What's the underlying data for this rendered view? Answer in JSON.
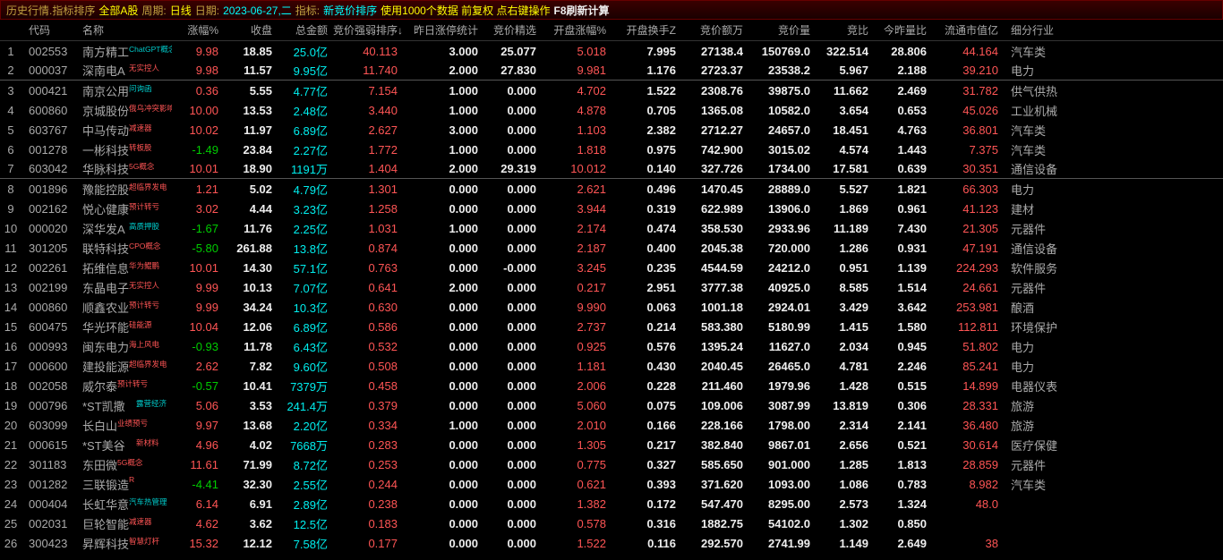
{
  "title": {
    "p1": "历史行情.指标排序",
    "p2": "全部A股",
    "p3": "周期:",
    "p4": "日线",
    "p5": "日期:",
    "p6": "2023-06-27,二",
    "p7": "指标:",
    "p8": "新竞价排序",
    "p9": "使用1000个数据 前复权 点右键操作",
    "p10": "F8刷新计算"
  },
  "columns": [
    "代码",
    "名称",
    "涨幅%",
    "收盘",
    "总金额",
    "竞价强弱排序↓",
    "昨日涨停统计",
    "竞价精选",
    "开盘涨幅%",
    "开盘换手Z",
    "竞价额万",
    "竞价量",
    "竞比",
    "今昨量比",
    "流通市值亿",
    "细分行业"
  ],
  "rows": [
    {
      "i": 1,
      "code": "002553",
      "name": "南方精工",
      "tag": "ChatGPT概念",
      "tagc": "#0cc",
      "pct": "9.98",
      "close": "18.85",
      "amt": "25.0",
      "u": "亿",
      "rank": "40.113",
      "yzt": "3.000",
      "jj": "25.077",
      "open": "5.018",
      "turn": "7.995",
      "ba": "27138.4",
      "bv": "150769.0",
      "br": "322.514",
      "dr": "28.806",
      "mcap": "44.164",
      "ind": "汽车类",
      "sep": false
    },
    {
      "i": 2,
      "code": "000037",
      "name": "深南电A",
      "tag": "无实控人",
      "tagc": "#f55",
      "pct": "9.98",
      "close": "11.57",
      "amt": "9.95",
      "u": "亿",
      "rank": "11.740",
      "yzt": "2.000",
      "jj": "27.830",
      "open": "9.981",
      "turn": "1.176",
      "ba": "2723.37",
      "bv": "23538.2",
      "br": "5.967",
      "dr": "2.188",
      "mcap": "39.210",
      "ind": "电力",
      "sep": true
    },
    {
      "i": 3,
      "code": "000421",
      "name": "南京公用",
      "tag": "问询函",
      "tagc": "#0cc",
      "pct": "0.36",
      "close": "5.55",
      "amt": "4.77",
      "u": "亿",
      "rank": "7.154",
      "yzt": "1.000",
      "jj": "0.000",
      "open": "4.702",
      "turn": "1.522",
      "ba": "2308.76",
      "bv": "39875.0",
      "br": "11.662",
      "dr": "2.469",
      "mcap": "31.782",
      "ind": "供气供热",
      "sep": false
    },
    {
      "i": 4,
      "code": "600860",
      "name": "京城股份",
      "tag": "俄乌冲突影响",
      "tagc": "#f55",
      "pct": "10.00",
      "close": "13.53",
      "amt": "2.48",
      "u": "亿",
      "rank": "3.440",
      "yzt": "1.000",
      "jj": "0.000",
      "open": "4.878",
      "turn": "0.705",
      "ba": "1365.08",
      "bv": "10582.0",
      "br": "3.654",
      "dr": "0.653",
      "mcap": "45.026",
      "ind": "工业机械",
      "sep": false
    },
    {
      "i": 5,
      "code": "603767",
      "name": "中马传动",
      "tag": "减速器",
      "tagc": "#f55",
      "pct": "10.02",
      "close": "11.97",
      "amt": "6.89",
      "u": "亿",
      "rank": "2.627",
      "yzt": "3.000",
      "jj": "0.000",
      "open": "1.103",
      "turn": "2.382",
      "ba": "2712.27",
      "bv": "24657.0",
      "br": "18.451",
      "dr": "4.763",
      "mcap": "36.801",
      "ind": "汽车类",
      "sep": false
    },
    {
      "i": 6,
      "code": "001278",
      "name": "一彬科技",
      "tag": "转板股",
      "tagc": "#f55",
      "pct": "-1.49",
      "close": "23.84",
      "amt": "2.27",
      "u": "亿",
      "rank": "1.772",
      "yzt": "1.000",
      "jj": "0.000",
      "open": "1.818",
      "turn": "0.975",
      "ba": "742.900",
      "bv": "3015.02",
      "br": "4.574",
      "dr": "1.443",
      "mcap": "7.375",
      "ind": "汽车类",
      "sep": false
    },
    {
      "i": 7,
      "code": "603042",
      "name": "华脉科技",
      "tag": "5G概念",
      "tagc": "#f55",
      "pct": "10.01",
      "close": "18.90",
      "amt": "1191",
      "u": "万",
      "rank": "1.404",
      "yzt": "2.000",
      "jj": "29.319",
      "open": "10.012",
      "turn": "0.140",
      "ba": "327.726",
      "bv": "1734.00",
      "br": "17.581",
      "dr": "0.639",
      "mcap": "30.351",
      "ind": "通信设备",
      "sep": true
    },
    {
      "i": 8,
      "code": "001896",
      "name": "豫能控股",
      "tag": "超临界发电",
      "tagc": "#f55",
      "pct": "1.21",
      "close": "5.02",
      "amt": "4.79",
      "u": "亿",
      "rank": "1.301",
      "yzt": "0.000",
      "jj": "0.000",
      "open": "2.621",
      "turn": "0.496",
      "ba": "1470.45",
      "bv": "28889.0",
      "br": "5.527",
      "dr": "1.821",
      "mcap": "66.303",
      "ind": "电力",
      "sep": false
    },
    {
      "i": 9,
      "code": "002162",
      "name": "悦心健康",
      "tag": "预计转亏",
      "tagc": "#f55",
      "pct": "3.02",
      "close": "4.44",
      "amt": "3.23",
      "u": "亿",
      "rank": "1.258",
      "yzt": "0.000",
      "jj": "0.000",
      "open": "3.944",
      "turn": "0.319",
      "ba": "622.989",
      "bv": "13906.0",
      "br": "1.869",
      "dr": "0.961",
      "mcap": "41.123",
      "ind": "建材",
      "sep": false
    },
    {
      "i": 10,
      "code": "000020",
      "name": "深华发A",
      "tag": "高质押股",
      "tagc": "#0cc",
      "pct": "-1.67",
      "close": "11.76",
      "amt": "2.25",
      "u": "亿",
      "rank": "1.031",
      "yzt": "1.000",
      "jj": "0.000",
      "open": "2.174",
      "turn": "0.474",
      "ba": "358.530",
      "bv": "2933.96",
      "br": "11.189",
      "dr": "7.430",
      "mcap": "21.305",
      "ind": "元器件",
      "sep": false
    },
    {
      "i": 11,
      "code": "301205",
      "name": "联特科技",
      "tag": "CPO概念",
      "tagc": "#f55",
      "pct": "-5.80",
      "close": "261.88",
      "amt": "13.8",
      "u": "亿",
      "rank": "0.874",
      "yzt": "0.000",
      "jj": "0.000",
      "open": "2.187",
      "turn": "0.400",
      "ba": "2045.38",
      "bv": "720.000",
      "br": "1.286",
      "dr": "0.931",
      "mcap": "47.191",
      "ind": "通信设备",
      "sep": false
    },
    {
      "i": 12,
      "code": "002261",
      "name": "拓维信息",
      "tag": "华为鲲鹏",
      "tagc": "#f55",
      "pct": "10.01",
      "close": "14.30",
      "amt": "57.1",
      "u": "亿",
      "rank": "0.763",
      "yzt": "0.000",
      "jj": "-0.000",
      "open": "3.245",
      "turn": "0.235",
      "ba": "4544.59",
      "bv": "24212.0",
      "br": "0.951",
      "dr": "1.139",
      "mcap": "224.293",
      "ind": "软件服务",
      "sep": false
    },
    {
      "i": 13,
      "code": "002199",
      "name": "东晶电子",
      "tag": "无实控人",
      "tagc": "#f55",
      "pct": "9.99",
      "close": "10.13",
      "amt": "7.07",
      "u": "亿",
      "rank": "0.641",
      "yzt": "2.000",
      "jj": "0.000",
      "open": "0.217",
      "turn": "2.951",
      "ba": "3777.38",
      "bv": "40925.0",
      "br": "8.585",
      "dr": "1.514",
      "mcap": "24.661",
      "ind": "元器件",
      "sep": false
    },
    {
      "i": 14,
      "code": "000860",
      "name": "顺鑫农业",
      "tag": "预计转亏",
      "tagc": "#f55",
      "pct": "9.99",
      "close": "34.24",
      "amt": "10.3",
      "u": "亿",
      "rank": "0.630",
      "yzt": "0.000",
      "jj": "0.000",
      "open": "9.990",
      "turn": "0.063",
      "ba": "1001.18",
      "bv": "2924.01",
      "br": "3.429",
      "dr": "3.642",
      "mcap": "253.981",
      "ind": "酿酒",
      "sep": false
    },
    {
      "i": 15,
      "code": "600475",
      "name": "华光环能",
      "tag": "硅能源",
      "tagc": "#f55",
      "pct": "10.04",
      "close": "12.06",
      "amt": "6.89",
      "u": "亿",
      "rank": "0.586",
      "yzt": "0.000",
      "jj": "0.000",
      "open": "2.737",
      "turn": "0.214",
      "ba": "583.380",
      "bv": "5180.99",
      "br": "1.415",
      "dr": "1.580",
      "mcap": "112.811",
      "ind": "环境保护",
      "sep": false
    },
    {
      "i": 16,
      "code": "000993",
      "name": "闽东电力",
      "tag": "海上风电",
      "tagc": "#f55",
      "pct": "-0.93",
      "close": "11.78",
      "amt": "6.43",
      "u": "亿",
      "rank": "0.532",
      "yzt": "0.000",
      "jj": "0.000",
      "open": "0.925",
      "turn": "0.576",
      "ba": "1395.24",
      "bv": "11627.0",
      "br": "2.034",
      "dr": "0.945",
      "mcap": "51.802",
      "ind": "电力",
      "sep": false
    },
    {
      "i": 17,
      "code": "000600",
      "name": "建投能源",
      "tag": "超临界发电",
      "tagc": "#f55",
      "pct": "2.62",
      "close": "7.82",
      "amt": "9.60",
      "u": "亿",
      "rank": "0.508",
      "yzt": "0.000",
      "jj": "0.000",
      "open": "1.181",
      "turn": "0.430",
      "ba": "2040.45",
      "bv": "26465.0",
      "br": "4.781",
      "dr": "2.246",
      "mcap": "85.241",
      "ind": "电力",
      "sep": false
    },
    {
      "i": 18,
      "code": "002058",
      "name": "威尔泰",
      "tag": "预计转亏",
      "tagc": "#f55",
      "pct": "-0.57",
      "close": "10.41",
      "amt": "7379",
      "u": "万",
      "rank": "0.458",
      "yzt": "0.000",
      "jj": "0.000",
      "open": "2.006",
      "turn": "0.228",
      "ba": "211.460",
      "bv": "1979.96",
      "br": "1.428",
      "dr": "0.515",
      "mcap": "14.899",
      "ind": "电器仪表",
      "sep": false
    },
    {
      "i": 19,
      "code": "000796",
      "name": "*ST凯撒",
      "tag": "露营经济",
      "tagc": "#0cc",
      "pct": "5.06",
      "close": "3.53",
      "amt": "241.4",
      "u": "万",
      "rank": "0.379",
      "yzt": "0.000",
      "jj": "0.000",
      "open": "5.060",
      "turn": "0.075",
      "ba": "109.006",
      "bv": "3087.99",
      "br": "13.819",
      "dr": "0.306",
      "mcap": "28.331",
      "ind": "旅游",
      "sep": false
    },
    {
      "i": 20,
      "code": "603099",
      "name": "长白山",
      "tag": "业绩预亏",
      "tagc": "#f55",
      "pct": "9.97",
      "close": "13.68",
      "amt": "2.20",
      "u": "亿",
      "rank": "0.334",
      "yzt": "1.000",
      "jj": "0.000",
      "open": "2.010",
      "turn": "0.166",
      "ba": "228.166",
      "bv": "1798.00",
      "br": "2.314",
      "dr": "2.141",
      "mcap": "36.480",
      "ind": "旅游",
      "sep": false
    },
    {
      "i": 21,
      "code": "000615",
      "name": "*ST美谷",
      "tag": "新材料",
      "tagc": "#f55",
      "pct": "4.96",
      "close": "4.02",
      "amt": "7668",
      "u": "万",
      "rank": "0.283",
      "yzt": "0.000",
      "jj": "0.000",
      "open": "1.305",
      "turn": "0.217",
      "ba": "382.840",
      "bv": "9867.01",
      "br": "2.656",
      "dr": "0.521",
      "mcap": "30.614",
      "ind": "医疗保健",
      "sep": false
    },
    {
      "i": 22,
      "code": "301183",
      "name": "东田微",
      "tag": "5G概念",
      "tagc": "#f55",
      "pct": "11.61",
      "close": "71.99",
      "amt": "8.72",
      "u": "亿",
      "rank": "0.253",
      "yzt": "0.000",
      "jj": "0.000",
      "open": "0.775",
      "turn": "0.327",
      "ba": "585.650",
      "bv": "901.000",
      "br": "1.285",
      "dr": "1.813",
      "mcap": "28.859",
      "ind": "元器件",
      "sep": false
    },
    {
      "i": 23,
      "code": "001282",
      "name": "三联锻造",
      "tag": "R",
      "tagc": "#f55",
      "pct": "-4.41",
      "close": "32.30",
      "amt": "2.55",
      "u": "亿",
      "rank": "0.244",
      "yzt": "0.000",
      "jj": "0.000",
      "open": "0.621",
      "turn": "0.393",
      "ba": "371.620",
      "bv": "1093.00",
      "br": "1.086",
      "dr": "0.783",
      "mcap": "8.982",
      "ind": "汽车类",
      "sep": false
    },
    {
      "i": 24,
      "code": "000404",
      "name": "长虹华意",
      "tag": "汽车热管理",
      "tagc": "#0cc",
      "pct": "6.14",
      "close": "6.91",
      "amt": "2.89",
      "u": "亿",
      "rank": "0.238",
      "yzt": "0.000",
      "jj": "0.000",
      "open": "1.382",
      "turn": "0.172",
      "ba": "547.470",
      "bv": "8295.00",
      "br": "2.573",
      "dr": "1.324",
      "mcap": "48.0",
      "ind": "",
      "sep": false
    },
    {
      "i": 25,
      "code": "002031",
      "name": "巨轮智能",
      "tag": "减速器",
      "tagc": "#f55",
      "pct": "4.62",
      "close": "3.62",
      "amt": "12.5",
      "u": "亿",
      "rank": "0.183",
      "yzt": "0.000",
      "jj": "0.000",
      "open": "0.578",
      "turn": "0.316",
      "ba": "1882.75",
      "bv": "54102.0",
      "br": "1.302",
      "dr": "0.850",
      "mcap": "",
      "ind": "",
      "sep": false
    },
    {
      "i": 26,
      "code": "300423",
      "name": "昇辉科技",
      "tag": "智慧灯杆",
      "tagc": "#f55",
      "pct": "15.32",
      "close": "12.12",
      "amt": "7.58",
      "u": "亿",
      "rank": "0.177",
      "yzt": "0.000",
      "jj": "0.000",
      "open": "1.522",
      "turn": "0.116",
      "ba": "292.570",
      "bv": "2741.99",
      "br": "1.149",
      "dr": "2.649",
      "mcap": "38",
      "ind": "",
      "sep": false
    }
  ]
}
